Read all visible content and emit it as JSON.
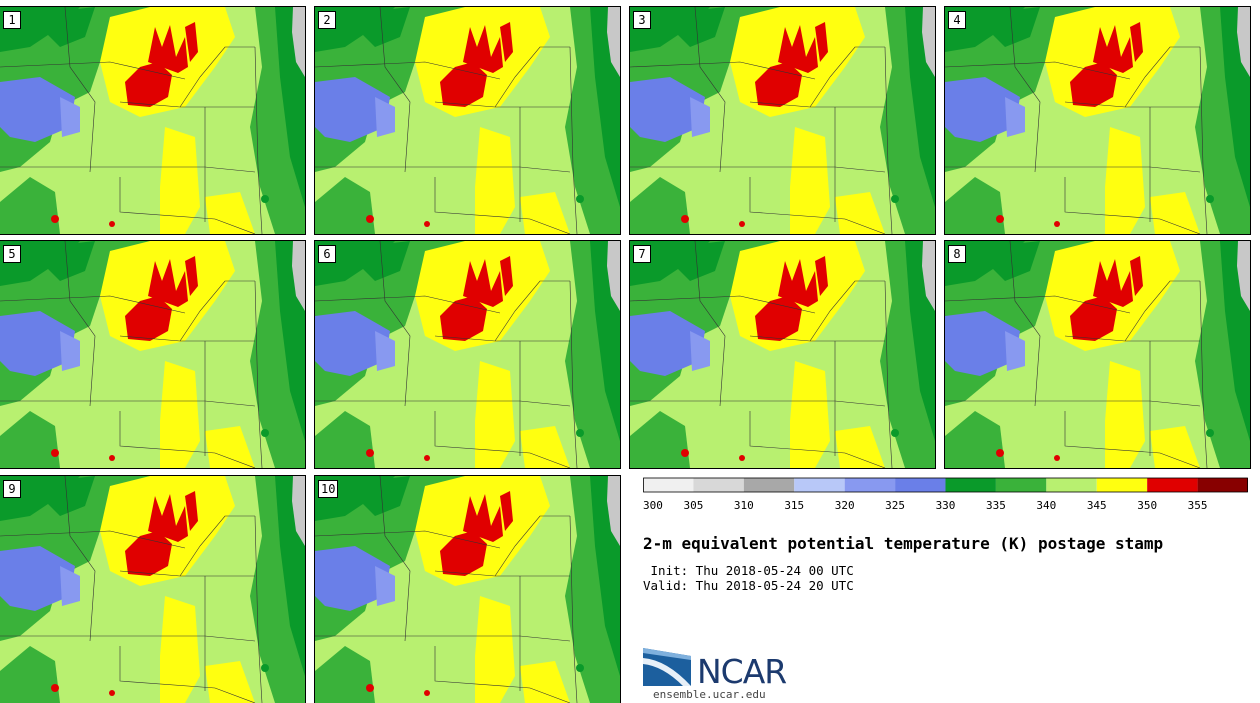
{
  "panels": [
    {
      "label": "1"
    },
    {
      "label": "2"
    },
    {
      "label": "3"
    },
    {
      "label": "4"
    },
    {
      "label": "5"
    },
    {
      "label": "6"
    },
    {
      "label": "7"
    },
    {
      "label": "8"
    },
    {
      "label": "9"
    },
    {
      "label": "10"
    }
  ],
  "colorbar": {
    "ticks": [
      "300",
      "305",
      "310",
      "315",
      "320",
      "325",
      "330",
      "335",
      "340",
      "345",
      "350",
      "355"
    ],
    "colors": [
      "#f0f0f0",
      "#d8d8d8",
      "#a8a8a8",
      "#b8c8f8",
      "#8899f0",
      "#6a7fe8",
      "#0a9a2a",
      "#3ab23a",
      "#b8f070",
      "#ffff10",
      "#e00000",
      "#880000"
    ]
  },
  "title": "2-m equivalent potential temperature (K) postage stamp",
  "init_line": " Init: Thu 2018-05-24 00 UTC",
  "valid_line": "Valid: Thu 2018-05-24 20 UTC",
  "logo": {
    "name": "NCAR",
    "url": "ensemble.ucar.edu"
  }
}
